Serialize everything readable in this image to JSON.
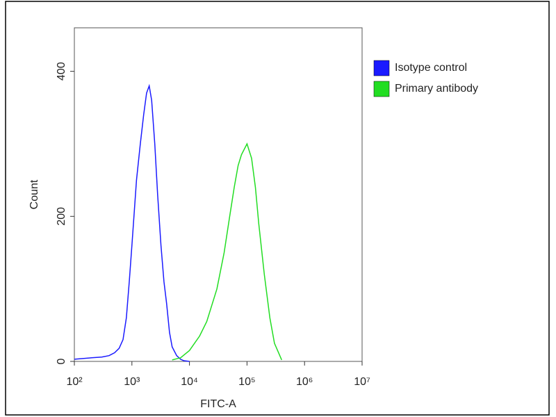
{
  "chart_data": {
    "type": "line",
    "xlabel": "FITC-A",
    "ylabel": "Count",
    "xscale": "log",
    "xlim": [
      100,
      10000000
    ],
    "ylim": [
      0,
      460
    ],
    "xticks": [
      {
        "value": 100,
        "label": "10²"
      },
      {
        "value": 1000,
        "label": "10³"
      },
      {
        "value": 10000,
        "label": "10⁴"
      },
      {
        "value": 100000,
        "label": "10⁵"
      },
      {
        "value": 1000000,
        "label": "10⁶"
      },
      {
        "value": 10000000,
        "label": "10⁷"
      }
    ],
    "yticks": [
      0,
      200,
      400
    ],
    "legend": "upper right outside",
    "series": [
      {
        "name": "Isotype control",
        "color": "#1a1aff",
        "x": [
          100,
          200,
          300,
          400,
          500,
          600,
          700,
          800,
          900,
          1000,
          1200,
          1400,
          1600,
          1800,
          2000,
          2200,
          2500,
          2800,
          3200,
          3600,
          4000,
          4500,
          5000,
          6000,
          7000,
          8000,
          10000
        ],
        "values": [
          3,
          5,
          6,
          8,
          12,
          18,
          30,
          60,
          110,
          160,
          250,
          300,
          340,
          370,
          380,
          360,
          300,
          230,
          160,
          110,
          80,
          40,
          20,
          8,
          3,
          1,
          0
        ]
      },
      {
        "name": "Primary antibody",
        "color": "#22dd22",
        "x": [
          5000,
          7000,
          10000,
          15000,
          20000,
          30000,
          40000,
          50000,
          60000,
          70000,
          80000,
          100000,
          120000,
          140000,
          160000,
          200000,
          250000,
          300000,
          400000
        ],
        "values": [
          2,
          5,
          15,
          35,
          55,
          100,
          150,
          200,
          240,
          270,
          285,
          300,
          280,
          240,
          190,
          120,
          60,
          25,
          2
        ]
      }
    ]
  }
}
